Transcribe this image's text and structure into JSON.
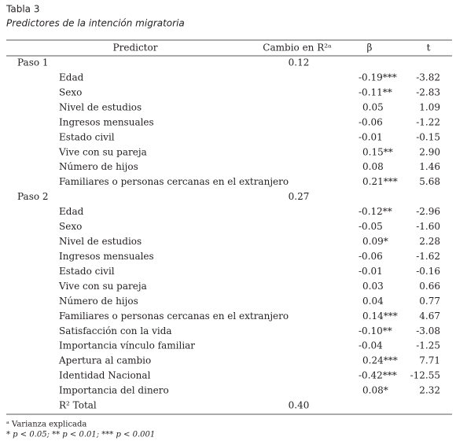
{
  "header": {
    "title": "Tabla 3",
    "subtitle": "Predictores de la intención migratoria"
  },
  "table": {
    "columns": [
      "Predictor",
      "Cambio en R²ᵃ",
      "β",
      "t"
    ],
    "steps": [
      {
        "label": "Paso 1",
        "cambio": "0.12",
        "predictors": [
          {
            "label": "Edad",
            "beta": "-0.19***",
            "t": "-3.82"
          },
          {
            "label": "Sexo",
            "beta": "-0.11**",
            "t": "-2.83"
          },
          {
            "label": "Nivel de estudios",
            "beta": "0.05",
            "t": "1.09"
          },
          {
            "label": "Ingresos mensuales",
            "beta": "-0.06",
            "t": "-1.22"
          },
          {
            "label": "Estado civil",
            "beta": "-0.01",
            "t": "-0.15"
          },
          {
            "label": "Vive con su pareja",
            "beta": "0.15**",
            "t": "2.90"
          },
          {
            "label": "Número de hijos",
            "beta": "0.08",
            "t": "1.46"
          },
          {
            "label": "Familiares o personas cercanas en el extranjero",
            "beta": "0.21***",
            "t": "5.68"
          }
        ]
      },
      {
        "label": "Paso 2",
        "cambio": "0.27",
        "predictors": [
          {
            "label": "Edad",
            "beta": "-0.12**",
            "t": "-2.96"
          },
          {
            "label": "Sexo",
            "beta": "-0.05",
            "t": "-1.60"
          },
          {
            "label": "Nivel de estudios",
            "beta": "0.09*",
            "t": "2.28"
          },
          {
            "label": "Ingresos mensuales",
            "beta": "-0.06",
            "t": "-1.62"
          },
          {
            "label": "Estado civil",
            "beta": "-0.01",
            "t": "-0.16"
          },
          {
            "label": "Vive con su pareja",
            "beta": "0.03",
            "t": "0.66"
          },
          {
            "label": "Número de hijos",
            "beta": "0.04",
            "t": "0.77"
          },
          {
            "label": "Familiares o personas cercanas en el extranjero",
            "beta": "0.14***",
            "t": "4.67"
          },
          {
            "label": "Satisfacción con la vida",
            "beta": "-0.10**",
            "t": "-3.08"
          },
          {
            "label": "Importancia vínculo familiar",
            "beta": "-0.04",
            "t": "-1.25"
          },
          {
            "label": "Apertura al cambio",
            "beta": "0.24***",
            "t": "7.71"
          },
          {
            "label": "Identidad Nacional",
            "beta": "-0.42***",
            "t": "-12.55"
          },
          {
            "label": "Importancia del dinero",
            "beta": "0.08*",
            "t": "2.32"
          }
        ]
      }
    ],
    "total": {
      "label": "R² Total",
      "cambio": "0.40"
    }
  },
  "notes": [
    "ᵃ Varianza explicada",
    "* p < 0.05;  ** p < 0.01; *** p < 0.001"
  ]
}
